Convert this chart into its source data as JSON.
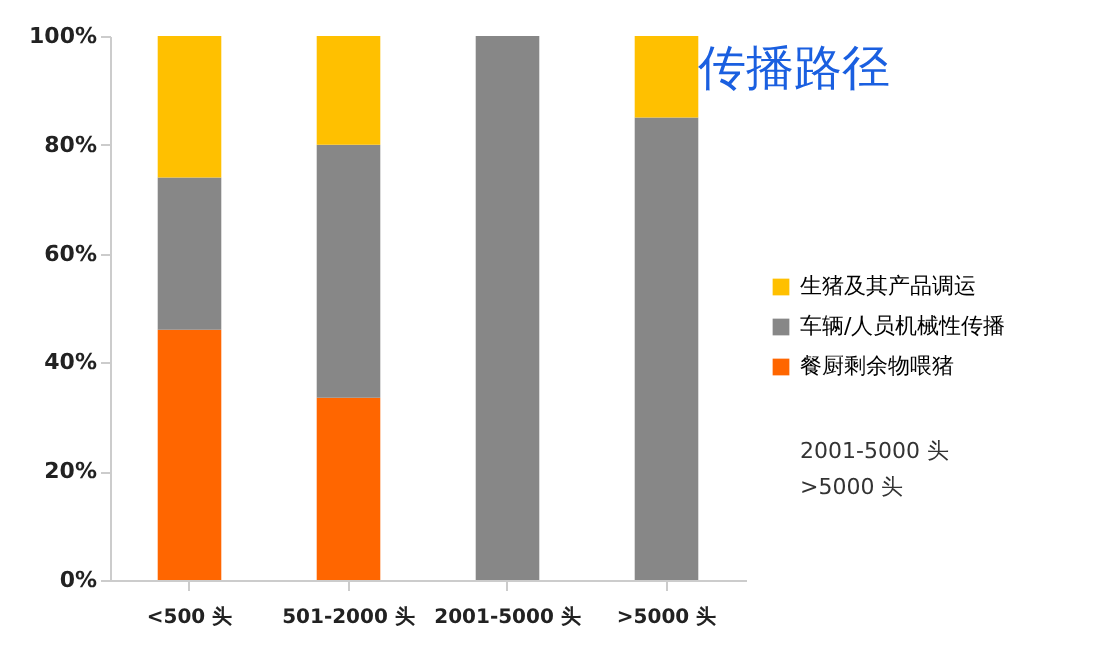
{
  "chart_data": {
    "type": "bar",
    "title": "传播路径",
    "stacked": true,
    "categories": [
      "<500 头",
      "501-2000 头",
      "2001-5000 头",
      ">5000 头"
    ],
    "series": [
      {
        "name": "餐厨剩余物喂猪",
        "color": "#ff6600",
        "values": [
          46,
          33.5,
          0,
          0
        ]
      },
      {
        "name": "车辆/人员机械性传播",
        "color": "#878787",
        "values": [
          28,
          46.5,
          100,
          85
        ]
      },
      {
        "name": "生猪及其产品调运",
        "color": "#ffc000",
        "values": [
          26,
          20,
          0,
          15
        ]
      }
    ],
    "ylim": [
      0,
      100
    ],
    "yticks": [
      {
        "value": 0,
        "label": "0%"
      },
      {
        "value": 20,
        "label": "20%"
      },
      {
        "value": 40,
        "label": "40%"
      },
      {
        "value": 60,
        "label": "60%"
      },
      {
        "value": 80,
        "label": "80%"
      },
      {
        "value": 100,
        "label": "100%"
      }
    ],
    "grid": false,
    "legend": "right",
    "annotations": [
      "2001-5000 头",
      ">5000 头"
    ]
  }
}
